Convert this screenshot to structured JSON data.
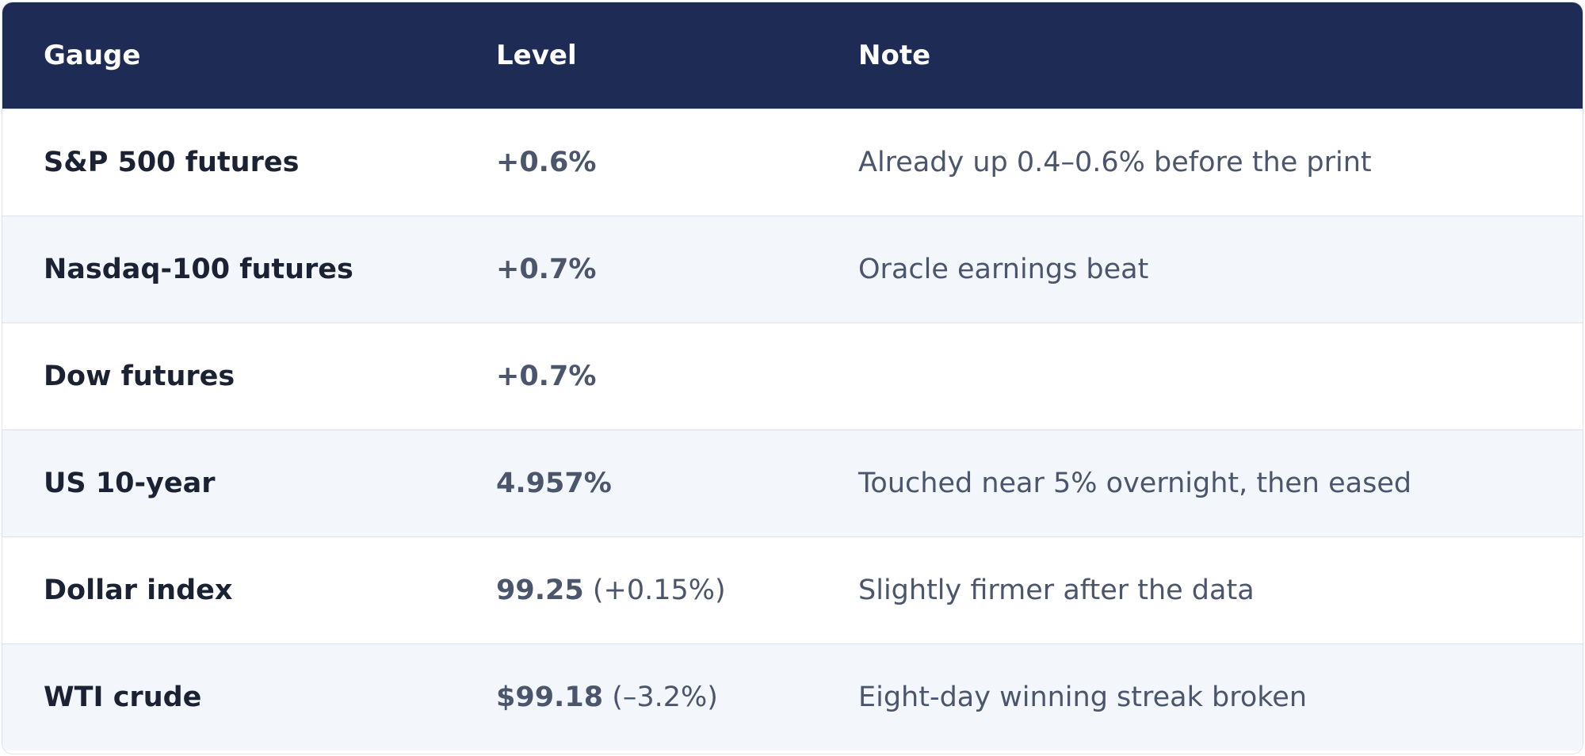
{
  "header": {
    "gauge": "Gauge",
    "level": "Level",
    "note": "Note"
  },
  "rows": [
    {
      "gauge": "S&P 500 futures",
      "level": "+0.6%",
      "level_extra": "",
      "note": "Already up 0.4–0.6% before the print"
    },
    {
      "gauge": "Nasdaq-100 futures",
      "level": "+0.7%",
      "level_extra": "",
      "note": "Oracle earnings beat"
    },
    {
      "gauge": "Dow futures",
      "level": "+0.7%",
      "level_extra": "",
      "note": ""
    },
    {
      "gauge": "US 10-year",
      "level": "4.957%",
      "level_extra": "",
      "note": "Touched near 5% overnight, then eased"
    },
    {
      "gauge": "Dollar index",
      "level": "99.25",
      "level_extra": " (+0.15%)",
      "note": "Slightly firmer after the data"
    },
    {
      "gauge": "WTI crude",
      "level": "$99.18",
      "level_extra": " (–3.2%)",
      "note": "Eight-day winning streak broken"
    }
  ],
  "colors": {
    "header_bg": "#1e2b54",
    "alt_row_bg": "#f3f7fc",
    "text_dark": "#1b2233",
    "text_muted": "#4b556c"
  }
}
